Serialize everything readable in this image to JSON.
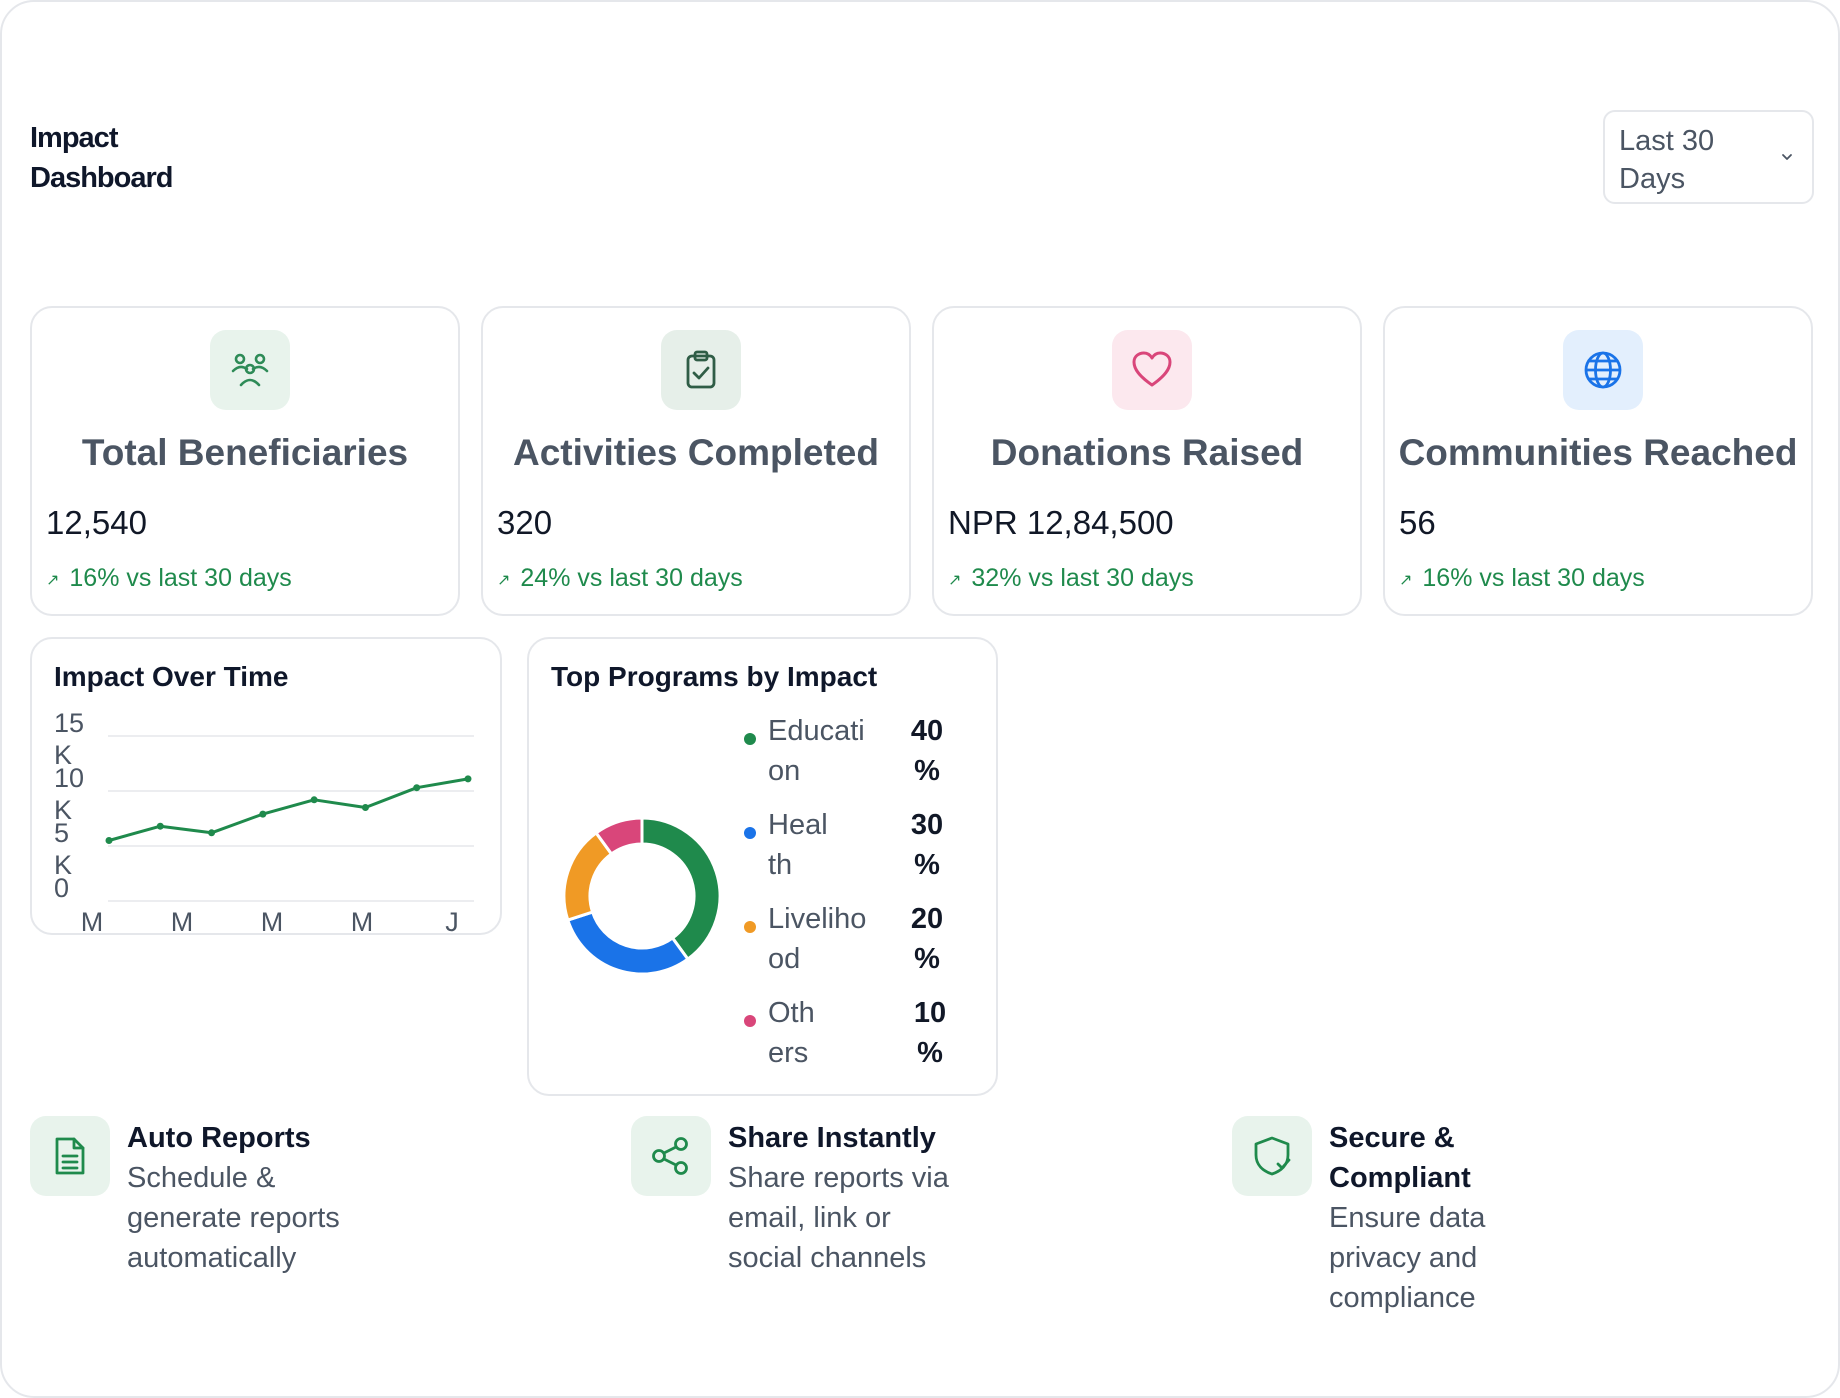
{
  "header": {
    "title": "Impact Dashboard",
    "range_select": {
      "value": "Last 30 Days"
    }
  },
  "stats": [
    {
      "label": "Total Beneficiaries",
      "value": "12,540",
      "trend": "16% vs last 30 days",
      "icon": "users-icon",
      "accent": "#2e8b57",
      "tile": "#e8f3ec"
    },
    {
      "label": "Activities Completed",
      "value": "320",
      "trend": "24% vs last 30 days",
      "icon": "clipboard-check-icon",
      "accent": "#2f5d46",
      "tile": "#e6efe9"
    },
    {
      "label": "Donations Raised",
      "value": "NPR 12,84,500",
      "trend": "32% vs last 30 days",
      "icon": "heart-icon",
      "accent": "#d9467a",
      "tile": "#fce8ee"
    },
    {
      "label": "Communities Reached",
      "value": "56",
      "trend": "16% vs last 30 days",
      "icon": "globe-icon",
      "accent": "#1a73e8",
      "tile": "#e3effd"
    }
  ],
  "impact_chart": {
    "title": "Impact Over Time",
    "y_ticks": [
      "15 K",
      "10 K",
      "5 K",
      "0"
    ],
    "x_ticks": [
      "M",
      "M",
      "M",
      "M",
      "J"
    ]
  },
  "programs": {
    "title": "Top Programs by Impact",
    "items": [
      {
        "name": "Education",
        "pct": "40 %",
        "color": "#1f8a4c"
      },
      {
        "name": "Health",
        "pct": "30 %",
        "color": "#1a73e8"
      },
      {
        "name": "Livelihood",
        "pct": "20 %",
        "color": "#f09a25"
      },
      {
        "name": "Others",
        "pct": "10 %",
        "color": "#d9467a"
      }
    ]
  },
  "features": [
    {
      "title": "Auto Reports",
      "desc": "Schedule & generate reports automatically",
      "icon": "document-icon"
    },
    {
      "title": "Share Instantly",
      "desc": "Share reports via email, link or social channels",
      "icon": "share-icon"
    },
    {
      "title": "Secure & Compliant",
      "desc": "Ensure data privacy and compliance",
      "icon": "shield-check-icon"
    }
  ],
  "chart_data": [
    {
      "type": "line",
      "title": "Impact Over Time",
      "ylim": [
        0,
        15000
      ],
      "y_tick_values": [
        0,
        5000,
        10000,
        15000
      ],
      "series": [
        {
          "values": [
            5500,
            6800,
            6200,
            7900,
            9200,
            8500,
            10300,
            11100
          ],
          "color": "#1f8a4c"
        }
      ],
      "grid": true
    },
    {
      "type": "pie",
      "title": "Top Programs by Impact",
      "categories": [
        "Education",
        "Health",
        "Livelihood",
        "Others"
      ],
      "values": [
        40,
        30,
        20,
        10
      ],
      "colors": [
        "#1f8a4c",
        "#1a73e8",
        "#f09a25",
        "#d9467a"
      ],
      "legend": "right"
    }
  ]
}
